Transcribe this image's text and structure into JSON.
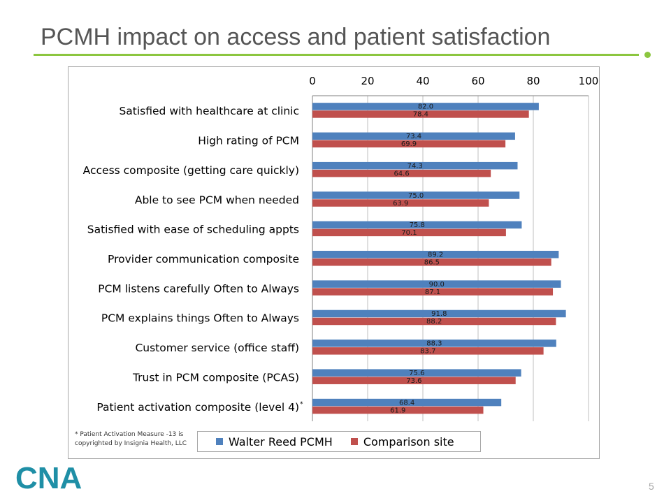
{
  "slide": {
    "title": "PCMH impact on access and patient satisfaction",
    "page_number": "5",
    "logo_text": "CNA",
    "footnote_line1": "* Patient Activation Measure -13 is",
    "footnote_line2": "copyrighted by Insignia Health, LLC"
  },
  "colors": {
    "accent_green": "#8cc63f",
    "series_blue": "#4f81bd",
    "series_red": "#c0504d",
    "logo_teal": "#1f8fa6"
  },
  "chart_data": {
    "type": "bar",
    "orientation": "horizontal",
    "xlim": [
      0,
      100
    ],
    "xticks": [
      "0",
      "20",
      "40",
      "60",
      "80",
      "100"
    ],
    "xaxis_position": "top",
    "grid": "vertical",
    "legend_position": "bottom",
    "categories": [
      "Satisfied with healthcare at clinic",
      "High rating of PCM",
      "Access composite (getting care quickly)",
      "Able to see PCM when needed",
      "Satisfied with ease of scheduling appts",
      "Provider communication composite",
      "PCM listens carefully Often to Always",
      "PCM explains things Often to Always",
      "Customer service (office staff)",
      "Trust in PCM composite (PCAS)",
      "Patient activation composite (level 4)"
    ],
    "category_marks": [
      "",
      "",
      "",
      "",
      "",
      "",
      "",
      "",
      "",
      "",
      "*"
    ],
    "series": [
      {
        "name": "Walter Reed PCMH",
        "color": "#4f81bd",
        "values": [
          82.0,
          73.4,
          74.3,
          75.0,
          75.8,
          89.2,
          90.0,
          91.8,
          88.3,
          75.6,
          68.4
        ],
        "labels": [
          "82.0",
          "73.4",
          "74.3",
          "75.0",
          "75.8",
          "89.2",
          "90.0",
          "91.8",
          "88.3",
          "75.6",
          "68.4"
        ]
      },
      {
        "name": "Comparison site",
        "color": "#c0504d",
        "values": [
          78.4,
          69.9,
          64.6,
          63.9,
          70.1,
          86.5,
          87.1,
          88.2,
          83.7,
          73.6,
          61.9
        ],
        "labels": [
          "78.4",
          "69.9",
          "64.6",
          "63.9",
          "70.1",
          "86.5",
          "87.1",
          "88.2",
          "83.7",
          "73.6",
          "61.9"
        ]
      }
    ]
  }
}
